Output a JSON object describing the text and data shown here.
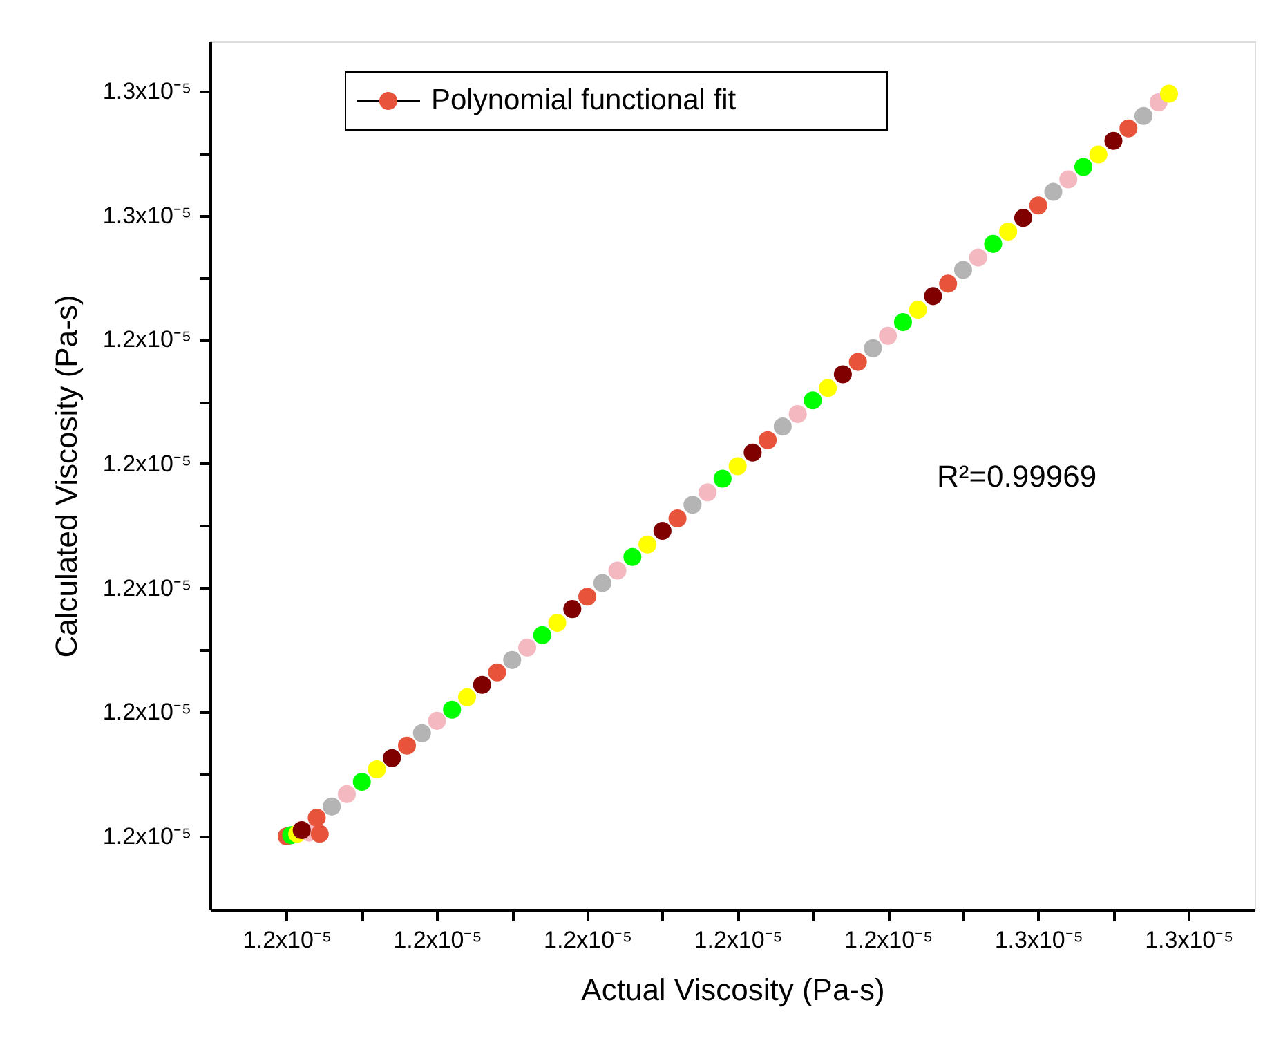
{
  "chart_data": {
    "type": "scatter",
    "xlabel": "Actual Viscosity (Pa-s)",
    "ylabel": "Calculated Viscosity (Pa-s)",
    "annotations": [
      "R²=0.99969"
    ],
    "legend": "top left",
    "marker": "circle",
    "grid": false,
    "xlim": [
      1.1949e-05,
      1.2644e-05
    ],
    "ylim": [
      1.1941e-05,
      1.264e-05
    ],
    "xticks": [
      {
        "value": 1.2e-05,
        "label": "1.2x10⁻⁵"
      },
      {
        "value": 1.205e-05,
        "label": null
      },
      {
        "value": 1.21e-05,
        "label": "1.2x10⁻⁵"
      },
      {
        "value": 1.215e-05,
        "label": null
      },
      {
        "value": 1.22e-05,
        "label": "1.2x10⁻⁵"
      },
      {
        "value": 1.225e-05,
        "label": null
      },
      {
        "value": 1.23e-05,
        "label": "1.2x10⁻⁵"
      },
      {
        "value": 1.235e-05,
        "label": null
      },
      {
        "value": 1.24e-05,
        "label": "1.2x10⁻⁵"
      },
      {
        "value": 1.245e-05,
        "label": null
      },
      {
        "value": 1.25e-05,
        "label": "1.3x10⁻⁵"
      },
      {
        "value": 1.255e-05,
        "label": null
      },
      {
        "value": 1.26e-05,
        "label": "1.3x10⁻⁵"
      }
    ],
    "yticks": [
      {
        "value": 1.2e-05,
        "label": "1.2x10⁻⁵"
      },
      {
        "value": 1.205e-05,
        "label": null
      },
      {
        "value": 1.21e-05,
        "label": "1.2x10⁻⁵"
      },
      {
        "value": 1.215e-05,
        "label": null
      },
      {
        "value": 1.22e-05,
        "label": "1.2x10⁻⁵"
      },
      {
        "value": 1.225e-05,
        "label": null
      },
      {
        "value": 1.23e-05,
        "label": "1.2x10⁻⁵"
      },
      {
        "value": 1.235e-05,
        "label": null
      },
      {
        "value": 1.24e-05,
        "label": "1.2x10⁻⁵"
      },
      {
        "value": 1.245e-05,
        "label": null
      },
      {
        "value": 1.25e-05,
        "label": "1.3x10⁻⁵"
      },
      {
        "value": 1.255e-05,
        "label": null
      },
      {
        "value": 1.26e-05,
        "label": "1.3x10⁻⁵"
      }
    ],
    "series": [
      {
        "name": "Polynomial functional fit",
        "color": "#e8533c",
        "x": [
          1.2e-05,
          1.2003e-05,
          1.2007e-05,
          1.2015e-05,
          1.2022e-05,
          1.201e-05,
          1.202e-05,
          1.203e-05,
          1.204e-05,
          1.205e-05,
          1.206e-05,
          1.207e-05,
          1.208e-05,
          1.209e-05,
          1.21e-05,
          1.211e-05,
          1.212e-05,
          1.213e-05,
          1.214e-05,
          1.215e-05,
          1.216e-05,
          1.217e-05,
          1.218e-05,
          1.219e-05,
          1.22e-05,
          1.221e-05,
          1.222e-05,
          1.223e-05,
          1.224e-05,
          1.225e-05,
          1.226e-05,
          1.227e-05,
          1.228e-05,
          1.229e-05,
          1.23e-05,
          1.231e-05,
          1.232e-05,
          1.233e-05,
          1.234e-05,
          1.235e-05,
          1.236e-05,
          1.237e-05,
          1.238e-05,
          1.239e-05,
          1.24e-05,
          1.241e-05,
          1.242e-05,
          1.243e-05,
          1.244e-05,
          1.245e-05,
          1.246e-05,
          1.247e-05,
          1.248e-05,
          1.249e-05,
          1.25e-05,
          1.251e-05,
          1.252e-05,
          1.253e-05,
          1.254e-05,
          1.255e-05,
          1.256e-05,
          1.257e-05,
          1.258e-05,
          1.2587e-05
        ],
        "values": [
          1.2e-05,
          1.2001e-05,
          1.2002e-05,
          1.2003e-05,
          1.2002e-05,
          1.2005e-05,
          1.2015e-05,
          1.2024e-05,
          1.2034e-05,
          1.2044e-05,
          1.2054e-05,
          1.2063e-05,
          1.2073e-05,
          1.2083e-05,
          1.2093e-05,
          1.2102e-05,
          1.2112e-05,
          1.2122e-05,
          1.2132e-05,
          1.2142e-05,
          1.2152e-05,
          1.2162e-05,
          1.2172e-05,
          1.2183e-05,
          1.2193e-05,
          1.2204e-05,
          1.2214e-05,
          1.2225e-05,
          1.2235e-05,
          1.2246e-05,
          1.2256e-05,
          1.2267e-05,
          1.2277e-05,
          1.2288e-05,
          1.2298e-05,
          1.2309e-05,
          1.2319e-05,
          1.233e-05,
          1.234e-05,
          1.2351e-05,
          1.2361e-05,
          1.2372e-05,
          1.2382e-05,
          1.2393e-05,
          1.2403e-05,
          1.2414e-05,
          1.2424e-05,
          1.2435e-05,
          1.2445e-05,
          1.2456e-05,
          1.2466e-05,
          1.2477e-05,
          1.2487e-05,
          1.2498e-05,
          1.2508e-05,
          1.2519e-05,
          1.2529e-05,
          1.2539e-05,
          1.2549e-05,
          1.256e-05,
          1.257e-05,
          1.258e-05,
          1.2591e-05,
          1.2598e-05
        ],
        "colors": [
          "#e8533c",
          "#00ff00",
          "#ffff00",
          "#f4b8c0",
          "#e8533c",
          "#800000",
          "#e8533c",
          "#b4b4b4",
          "#f4b8c0",
          "#00ff00",
          "#ffff00",
          "#800000",
          "#e8533c",
          "#b4b4b4",
          "#f4b8c0",
          "#00ff00",
          "#ffff00",
          "#800000",
          "#e8533c",
          "#b4b4b4",
          "#f4b8c0",
          "#00ff00",
          "#ffff00",
          "#800000",
          "#e8533c",
          "#b4b4b4",
          "#f4b8c0",
          "#00ff00",
          "#ffff00",
          "#800000",
          "#e8533c",
          "#b4b4b4",
          "#f4b8c0",
          "#00ff00",
          "#ffff00",
          "#800000",
          "#e8533c",
          "#b4b4b4",
          "#f4b8c0",
          "#00ff00",
          "#ffff00",
          "#800000",
          "#e8533c",
          "#b4b4b4",
          "#f4b8c0",
          "#00ff00",
          "#ffff00",
          "#800000",
          "#e8533c",
          "#b4b4b4",
          "#f4b8c0",
          "#00ff00",
          "#ffff00",
          "#800000",
          "#e8533c",
          "#b4b4b4",
          "#f4b8c0",
          "#00ff00",
          "#ffff00",
          "#800000",
          "#e8533c",
          "#b4b4b4",
          "#f4b8c0",
          "#ffff00"
        ]
      }
    ]
  }
}
